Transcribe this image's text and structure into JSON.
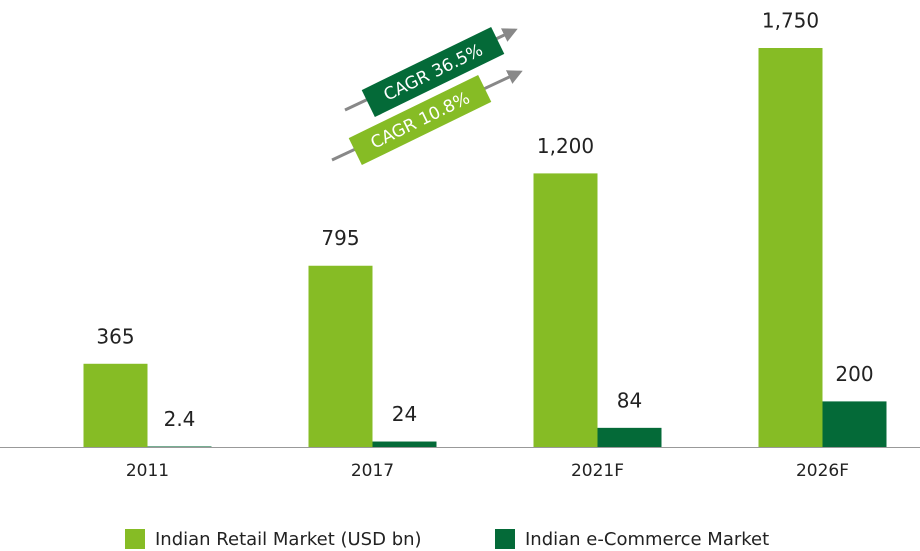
{
  "chart_data": {
    "type": "bar",
    "categories": [
      "2011",
      "2017",
      "2021F",
      "2026F"
    ],
    "series": [
      {
        "name": "Indian Retail Market (USD bn)",
        "color": "#86bc25",
        "values": [
          365,
          795,
          1200,
          1750
        ],
        "value_labels": [
          "365",
          "795",
          "1,200",
          "1,750"
        ]
      },
      {
        "name": "Indian e-Commerce Market",
        "color": "#046a38",
        "values": [
          2.4,
          24,
          84,
          200
        ]
      }
    ],
    "annotations": [
      {
        "text": "CAGR 36.5%",
        "color": "#046a38"
      },
      {
        "text": "CAGR 10.8%",
        "color": "#86bc25"
      }
    ]
  }
}
